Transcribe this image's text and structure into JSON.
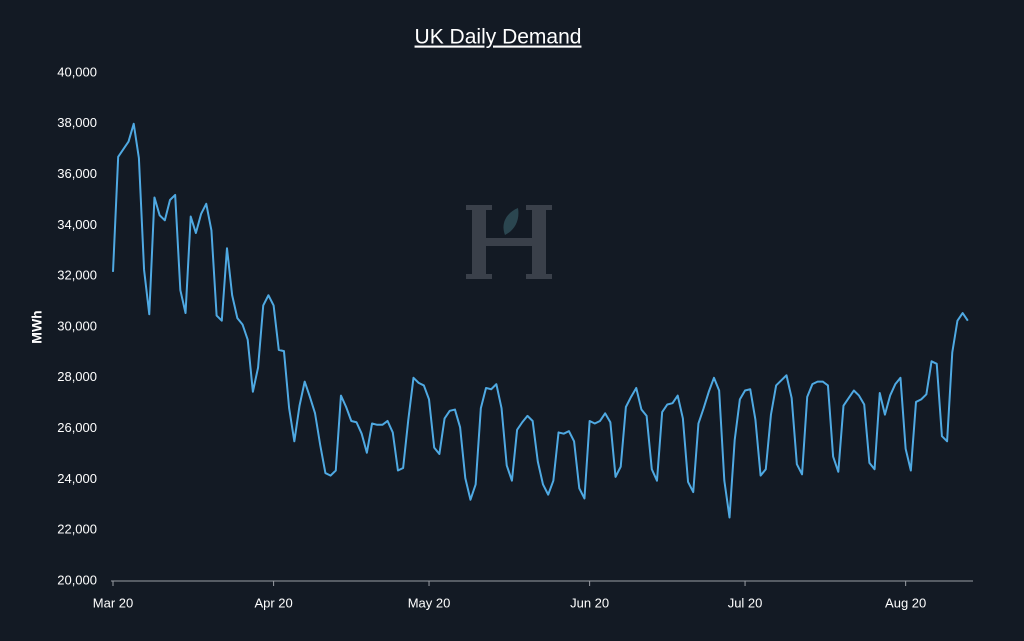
{
  "chart_data": {
    "type": "line",
    "title": "UK Daily Demand",
    "ylabel": "MWh",
    "color": "#4fa9e2",
    "x": [
      0,
      1,
      2,
      3,
      4,
      5,
      6,
      7,
      8,
      9,
      10,
      11,
      12,
      13,
      14,
      15,
      16,
      17,
      18,
      19,
      20,
      21,
      22,
      23,
      24,
      25,
      26,
      27,
      28,
      29,
      30,
      31,
      32,
      33,
      34,
      35,
      36,
      37,
      38,
      39,
      40,
      41,
      42,
      43,
      44,
      45,
      46,
      47,
      48,
      49,
      50,
      51,
      52,
      53,
      54,
      55,
      56,
      57,
      58,
      59,
      60,
      61,
      62,
      63,
      64,
      65,
      66,
      67,
      68,
      69,
      70,
      71,
      72,
      73,
      74,
      75,
      76,
      77,
      78,
      79,
      80,
      81,
      82,
      83,
      84,
      85,
      86,
      87,
      88,
      89,
      90,
      91,
      92,
      93,
      94,
      95,
      96,
      97,
      98,
      99,
      100,
      101,
      102,
      103,
      104,
      105,
      106,
      107,
      108,
      109,
      110,
      111,
      112,
      113,
      114,
      115,
      116,
      117,
      118,
      119,
      120,
      121,
      122,
      123,
      124,
      125,
      126,
      127,
      128,
      129,
      130,
      131,
      132,
      133,
      134,
      135,
      136,
      137,
      138,
      139,
      140,
      141,
      142,
      143,
      144,
      145,
      146,
      147,
      148,
      149,
      150,
      151,
      152,
      153,
      154,
      155,
      156,
      157,
      158,
      159,
      160,
      161,
      162,
      163,
      164,
      165
    ],
    "values": [
      32170,
      36700,
      37000,
      37300,
      38000,
      36650,
      32250,
      30500,
      35100,
      34400,
      34200,
      35000,
      35200,
      31450,
      30550,
      34350,
      33700,
      34450,
      34850,
      33800,
      30450,
      30250,
      33100,
      31250,
      30350,
      30100,
      29500,
      27450,
      28400,
      30850,
      31250,
      30850,
      29100,
      29050,
      26800,
      25500,
      26900,
      27850,
      27250,
      26600,
      25350,
      24250,
      24150,
      24350,
      27300,
      26850,
      26300,
      26250,
      25800,
      25050,
      26200,
      26150,
      26150,
      26300,
      25850,
      24350,
      24450,
      26350,
      28000,
      27800,
      27700,
      27150,
      25250,
      25000,
      26400,
      26700,
      26750,
      26050,
      24050,
      23200,
      23800,
      26800,
      27600,
      27550,
      27750,
      26800,
      24550,
      23950,
      25950,
      26250,
      26500,
      26300,
      24700,
      23800,
      23400,
      23950,
      25850,
      25800,
      25900,
      25500,
      23650,
      23250,
      26300,
      26200,
      26300,
      26600,
      26250,
      24100,
      24500,
      26850,
      27250,
      27600,
      26750,
      26500,
      24400,
      23950,
      26650,
      26950,
      27000,
      27300,
      26400,
      23900,
      23500,
      26200,
      26800,
      27450,
      28000,
      27500,
      23950,
      22500,
      25550,
      27150,
      27500,
      27550,
      26350,
      24150,
      24400,
      26550,
      27700,
      27900,
      28100,
      27200,
      24600,
      24200,
      27250,
      27750,
      27850,
      27850,
      27700,
      24900,
      24300,
      26900,
      27200,
      27500,
      27300,
      26950,
      24650,
      24400,
      27400,
      26550,
      27300,
      27750,
      28000,
      25200,
      24350,
      27050,
      27150,
      27350,
      28650,
      28550,
      25700,
      25500,
      29000,
      30250,
      30550,
      30250
    ],
    "xlim": [
      0,
      166
    ],
    "xticks": [
      {
        "value": 0,
        "label": "Mar 20"
      },
      {
        "value": 31,
        "label": "Apr 20"
      },
      {
        "value": 61,
        "label": "May 20"
      },
      {
        "value": 92,
        "label": "Jun 20"
      },
      {
        "value": 122,
        "label": "Jul 20"
      },
      {
        "value": 153,
        "label": "Aug 20"
      }
    ],
    "ylim": [
      20000,
      40000
    ],
    "yticks": [
      {
        "value": 20000,
        "label": "20,000"
      },
      {
        "value": 22000,
        "label": "22,000"
      },
      {
        "value": 24000,
        "label": "24,000"
      },
      {
        "value": 26000,
        "label": "26,000"
      },
      {
        "value": 28000,
        "label": "28,000"
      },
      {
        "value": 30000,
        "label": "30,000"
      },
      {
        "value": 32000,
        "label": "32,000"
      },
      {
        "value": 34000,
        "label": "34,000"
      },
      {
        "value": 36000,
        "label": "36,000"
      },
      {
        "value": 38000,
        "label": "38,000"
      },
      {
        "value": 40000,
        "label": "40,000"
      }
    ],
    "grid": false
  }
}
